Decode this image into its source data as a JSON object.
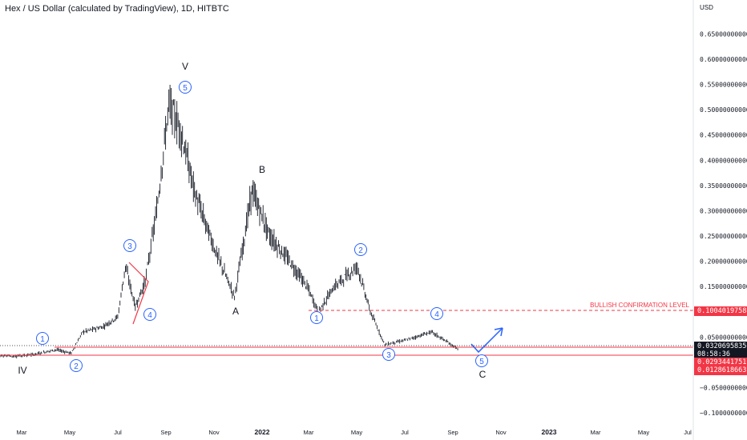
{
  "header": {
    "title": "Hex / US Dollar (calculated by TradingView), 1D, HITBTC"
  },
  "axis": {
    "currency": "USD",
    "y_ticks": [
      "0.65000000000",
      "0.60000000000",
      "0.55000000000",
      "0.50000000000",
      "0.45000000000",
      "0.40000000000",
      "0.35000000000",
      "0.30000000000",
      "0.25000000000",
      "0.20000000000",
      "0.15000000000",
      "0.05000000000",
      "−0.05000000000",
      "−0.10000000000"
    ],
    "x_ticks": [
      "Mar",
      "May",
      "Jul",
      "Sep",
      "Nov",
      "2022",
      "Mar",
      "May",
      "Jul",
      "Sep",
      "Nov",
      "2023",
      "Mar",
      "May",
      "Jul"
    ]
  },
  "price_tags": {
    "bullish_level": "0.10040197588",
    "current_price": "0.03206958350",
    "countdown": "08:58:36",
    "level_mid": "0.02934417516",
    "level_low": "0.01286186637"
  },
  "annotations": {
    "bullish_label": "BULLISH CONFIRMATION LEVEL",
    "waves": {
      "IV": "IV",
      "V": "V",
      "A": "A",
      "B": "B",
      "C": "C",
      "w1a": "1",
      "w2a": "2",
      "w3a": "3",
      "w4a": "4",
      "w5a": "5",
      "w1b": "1",
      "w2b": "2",
      "w3b": "3",
      "w4b": "4",
      "w5b": "5"
    }
  },
  "colors": {
    "price": "#131722",
    "wave_circle": "#2962ff",
    "level": "#f23645",
    "arrow": "#2962ff"
  },
  "chart_data": {
    "type": "candlestick",
    "y_unit": "USD",
    "ylim": [
      -0.1,
      0.7
    ],
    "x_range": [
      "2021-02",
      "2023-07"
    ],
    "price_path": [
      {
        "x": "2021-02-15",
        "y": 0.012
      },
      {
        "x": "2021-03-15",
        "y": 0.015
      },
      {
        "x": "2021-04-15",
        "y": 0.025
      },
      {
        "x": "2021-05-05",
        "y": 0.018
      },
      {
        "x": "2021-05-20",
        "y": 0.06
      },
      {
        "x": "2021-06-15",
        "y": 0.07
      },
      {
        "x": "2021-07-05",
        "y": 0.09
      },
      {
        "x": "2021-07-15",
        "y": 0.19
      },
      {
        "x": "2021-07-28",
        "y": 0.11
      },
      {
        "x": "2021-08-10",
        "y": 0.16
      },
      {
        "x": "2021-08-25",
        "y": 0.3
      },
      {
        "x": "2021-09-10",
        "y": 0.51
      },
      {
        "x": "2021-09-25",
        "y": 0.46
      },
      {
        "x": "2021-10-15",
        "y": 0.33
      },
      {
        "x": "2021-11-10",
        "y": 0.22
      },
      {
        "x": "2021-12-05",
        "y": 0.13
      },
      {
        "x": "2021-12-28",
        "y": 0.34
      },
      {
        "x": "2022-01-20",
        "y": 0.25
      },
      {
        "x": "2022-02-15",
        "y": 0.2
      },
      {
        "x": "2022-03-10",
        "y": 0.15
      },
      {
        "x": "2022-03-25",
        "y": 0.1
      },
      {
        "x": "2022-04-15",
        "y": 0.15
      },
      {
        "x": "2022-05-15",
        "y": 0.19
      },
      {
        "x": "2022-06-01",
        "y": 0.1
      },
      {
        "x": "2022-06-20",
        "y": 0.035
      },
      {
        "x": "2022-07-20",
        "y": 0.045
      },
      {
        "x": "2022-08-20",
        "y": 0.06
      },
      {
        "x": "2022-09-05",
        "y": 0.045
      },
      {
        "x": "2022-09-25",
        "y": 0.025
      }
    ],
    "levels": [
      {
        "label": "BULLISH CONFIRMATION LEVEL",
        "y": 0.10040197588,
        "style": "dashed"
      },
      {
        "y": 0.0320695835,
        "style": "dotted"
      },
      {
        "y": 0.02934417516,
        "style": "solid"
      },
      {
        "y": 0.01286186637,
        "style": "solid"
      }
    ],
    "wave_labels": [
      {
        "label": "IV",
        "x": "2021-02-15",
        "y": -0.02
      },
      {
        "label": "1",
        "x": "2021-04-05",
        "y": 0.05
      },
      {
        "label": "2",
        "x": "2021-05-05",
        "y": -0.005
      },
      {
        "label": "3",
        "x": "2021-07-15",
        "y": 0.215
      },
      {
        "label": "4",
        "x": "2021-08-05",
        "y": 0.085
      },
      {
        "label": "5",
        "x": "2021-09-20",
        "y": 0.56
      },
      {
        "label": "V",
        "x": "2021-09-20",
        "y": 0.605
      },
      {
        "label": "A",
        "x": "2021-12-10",
        "y": 0.095
      },
      {
        "label": "B",
        "x": "2021-12-30",
        "y": 0.38
      },
      {
        "label": "1",
        "x": "2022-04-05",
        "y": 0.085
      },
      {
        "label": "2",
        "x": "2022-05-15",
        "y": 0.215
      },
      {
        "label": "3",
        "x": "2022-06-25",
        "y": 0.015
      },
      {
        "label": "4",
        "x": "2022-08-15",
        "y": 0.085
      },
      {
        "label": "5",
        "x": "2022-09-25",
        "y": 0.005
      },
      {
        "label": "C",
        "x": "2022-09-25",
        "y": -0.03
      }
    ]
  }
}
